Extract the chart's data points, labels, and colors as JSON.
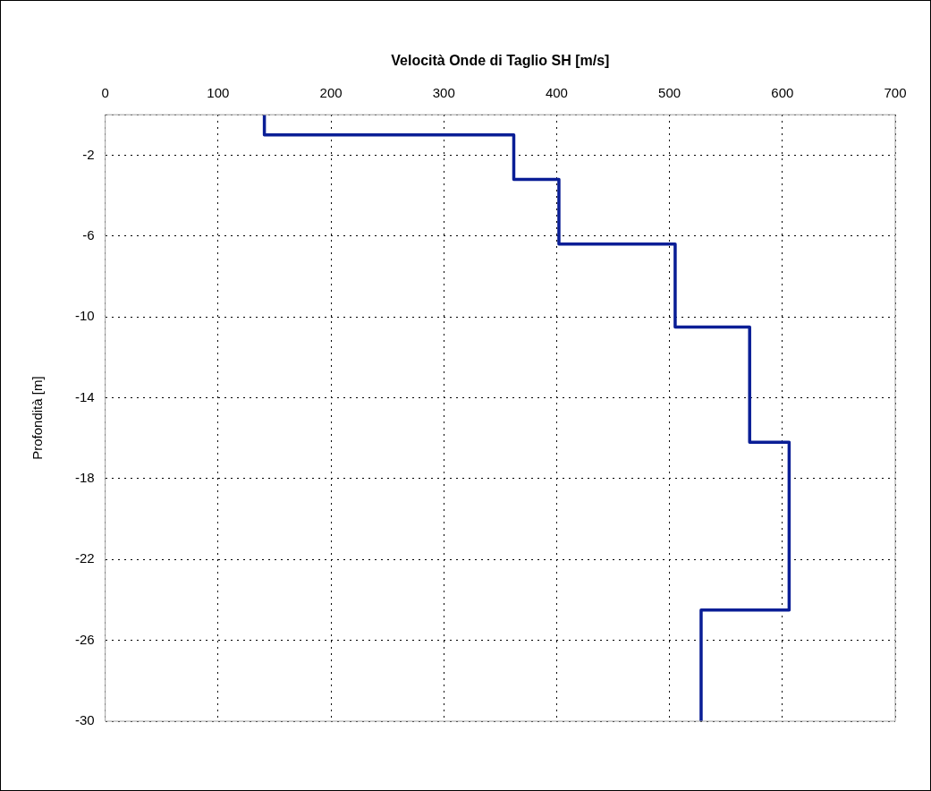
{
  "chart_data": {
    "type": "line",
    "xlabel": "Velocità Onde di Taglio SH [m/s]",
    "ylabel": "Profondità [m]",
    "x": [
      141,
      141,
      362,
      362,
      402,
      402,
      505,
      505,
      571,
      571,
      606,
      606,
      528,
      528
    ],
    "series": [
      {
        "color": "#0a1e96",
        "values": [
          0,
          -1,
          -1,
          -3.2,
          -3.2,
          -6.4,
          -6.4,
          -10.5,
          -10.5,
          -16.2,
          -16.2,
          -24.5,
          -24.5,
          -30
        ]
      }
    ],
    "xlim": [
      0,
      700
    ],
    "xticks": [
      0,
      100,
      200,
      300,
      400,
      500,
      600,
      700
    ],
    "ylim": [
      -30,
      0
    ],
    "yticks": [
      {
        "value": 0,
        "label": null
      },
      -2,
      -6,
      -10,
      -14,
      -18,
      -22,
      -26,
      -30
    ],
    "grid": true,
    "legend": false,
    "marker": "none",
    "line_style": "solid"
  }
}
